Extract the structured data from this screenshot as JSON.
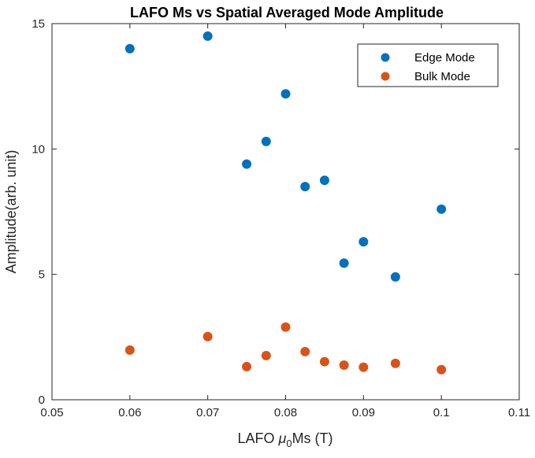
{
  "chart_data": {
    "type": "scatter",
    "title": "LAFO Ms vs Spatial Averaged Mode Amplitude",
    "xlabel": {
      "prefix": "LAFO ",
      "symbol": "μ",
      "subscript": "0",
      "suffix": "Ms (T)"
    },
    "ylabel": "Amplitude(arb. unit)",
    "xlim": [
      0.05,
      0.11
    ],
    "ylim": [
      0,
      15
    ],
    "xticks": [
      0.05,
      0.06,
      0.07,
      0.08,
      0.09,
      0.1,
      0.11
    ],
    "xtick_labels": [
      "0.05",
      "0.06",
      "0.07",
      "0.08",
      "0.09",
      "0.1",
      "0.11"
    ],
    "yticks": [
      0,
      5,
      10,
      15
    ],
    "ytick_labels": [
      "0",
      "5",
      "10",
      "15"
    ],
    "grid": false,
    "legend_position": "top-right",
    "series": [
      {
        "name": "Edge Mode",
        "color": "#0072BD",
        "x": [
          0.06,
          0.07,
          0.075,
          0.0775,
          0.08,
          0.0825,
          0.085,
          0.0875,
          0.09,
          0.0941,
          0.1
        ],
        "y": [
          14.0,
          14.5,
          9.4,
          10.3,
          12.2,
          8.5,
          8.75,
          5.45,
          6.3,
          4.9,
          7.6
        ]
      },
      {
        "name": "Bulk Mode",
        "color": "#D95319",
        "x": [
          0.06,
          0.07,
          0.075,
          0.0775,
          0.08,
          0.0825,
          0.085,
          0.0875,
          0.09,
          0.0941,
          0.1
        ],
        "y": [
          1.98,
          2.52,
          1.32,
          1.76,
          2.9,
          1.92,
          1.52,
          1.38,
          1.3,
          1.45,
          1.2
        ]
      }
    ]
  }
}
